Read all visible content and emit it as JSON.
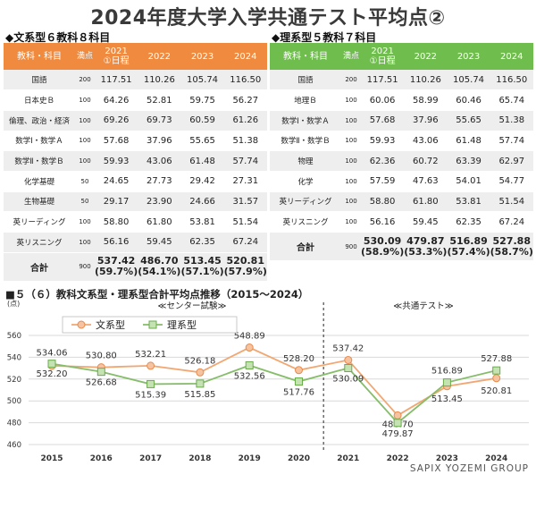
{
  "title": "2024年度大学入学共通テスト平均点②",
  "footer": "SAPIX YOZEMI GROUP",
  "liberal": {
    "heading": "◆文系型６教科８科目",
    "headers": [
      "教科・科目",
      "満点",
      "2021\n①日程",
      "2022",
      "2023",
      "2024"
    ],
    "rows": [
      [
        "国語",
        "200",
        "117.51",
        "110.26",
        "105.74",
        "116.50"
      ],
      [
        "日本史Ｂ",
        "100",
        "64.26",
        "52.81",
        "59.75",
        "56.27"
      ],
      [
        "倫理、政治・経済",
        "100",
        "69.26",
        "69.73",
        "60.59",
        "61.26"
      ],
      [
        "数学Ⅰ・数学Ａ",
        "100",
        "57.68",
        "37.96",
        "55.65",
        "51.38"
      ],
      [
        "数学Ⅱ・数学Ｂ",
        "100",
        "59.93",
        "43.06",
        "61.48",
        "57.74"
      ],
      [
        "化学基礎",
        "50",
        "24.65",
        "27.73",
        "29.42",
        "27.31"
      ],
      [
        "生物基礎",
        "50",
        "29.17",
        "23.90",
        "24.66",
        "31.57"
      ],
      [
        "英リーディング",
        "100",
        "58.80",
        "61.80",
        "53.81",
        "51.54"
      ],
      [
        "英リスニング",
        "100",
        "56.16",
        "59.45",
        "62.35",
        "67.24"
      ]
    ],
    "total": {
      "label": "合計",
      "full": "900",
      "values": [
        "537.42",
        "486.70",
        "513.45",
        "520.81"
      ],
      "pcts": [
        "(59.7%)",
        "(54.1%)",
        "(57.1%)",
        "(57.9%)"
      ]
    }
  },
  "science": {
    "heading": "◆理系型５教科７科目",
    "headers": [
      "教科・科目",
      "満点",
      "2021\n①日程",
      "2022",
      "2023",
      "2024"
    ],
    "rows": [
      [
        "国語",
        "200",
        "117.51",
        "110.26",
        "105.74",
        "116.50"
      ],
      [
        "地理Ｂ",
        "100",
        "60.06",
        "58.99",
        "60.46",
        "65.74"
      ],
      [
        "数学Ⅰ・数学Ａ",
        "100",
        "57.68",
        "37.96",
        "55.65",
        "51.38"
      ],
      [
        "数学Ⅱ・数学Ｂ",
        "100",
        "59.93",
        "43.06",
        "61.48",
        "57.74"
      ],
      [
        "物理",
        "100",
        "62.36",
        "60.72",
        "63.39",
        "62.97"
      ],
      [
        "化学",
        "100",
        "57.59",
        "47.63",
        "54.01",
        "54.77"
      ],
      [
        "英リーディング",
        "100",
        "58.80",
        "61.80",
        "53.81",
        "51.54"
      ],
      [
        "英リスニング",
        "100",
        "56.16",
        "59.45",
        "62.35",
        "67.24"
      ]
    ],
    "total": {
      "label": "合計",
      "full": "900",
      "values": [
        "530.09",
        "479.87",
        "516.89",
        "527.88"
      ],
      "pcts": [
        "(58.9%)",
        "(53.3%)",
        "(57.4%)",
        "(58.7%)"
      ]
    }
  },
  "chart_data": {
    "type": "line",
    "title": "■５（６）教科文系型・理系型合計平均点推移（2015～2024）",
    "ylabel": "(点)",
    "ylim": [
      460,
      560
    ],
    "yticks": [
      460,
      480,
      500,
      520,
      540,
      560
    ],
    "x": [
      "2015",
      "2016",
      "2017",
      "2018",
      "2019",
      "2020",
      "2021",
      "2022",
      "2023",
      "2024"
    ],
    "series": [
      {
        "name": "文系型",
        "color": "#f2a772",
        "values": [
          532.2,
          530.8,
          532.21,
          526.18,
          548.89,
          528.2,
          537.42,
          486.7,
          513.45,
          520.81
        ],
        "labels": [
          "532.20",
          "530.80",
          "532.21",
          "526.18",
          "548.89",
          "528.20",
          "537.42",
          "486.70",
          "513.45",
          "520.81"
        ]
      },
      {
        "name": "理系型",
        "color": "#86bd6a",
        "values": [
          534.06,
          526.68,
          515.39,
          515.85,
          532.56,
          517.76,
          530.09,
          479.87,
          516.89,
          527.88
        ],
        "labels": [
          "534.06",
          "526.68",
          "515.39",
          "515.85",
          "532.56",
          "517.76",
          "530.09",
          "479.87",
          "516.89",
          "527.88"
        ]
      }
    ],
    "annotations": [
      "≪センター試験≫",
      "≪共通テスト≫"
    ],
    "grid": true,
    "legend": "top-left"
  }
}
